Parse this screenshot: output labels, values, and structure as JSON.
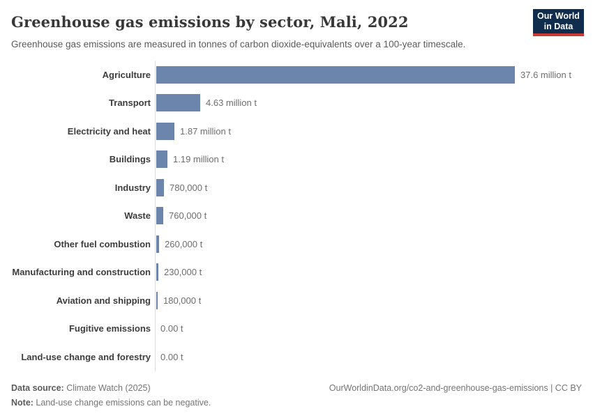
{
  "header": {
    "title": "Greenhouse gas emissions by sector, Mali, 2022",
    "subtitle": "Greenhouse gas emissions are measured in tonnes of carbon dioxide-equivalents over a 100-year timescale."
  },
  "logo": {
    "line1": "Our World",
    "line2": "in Data",
    "bg_color": "#102d4e",
    "accent_color": "#cc3b33"
  },
  "chart_data": {
    "type": "bar",
    "orientation": "horizontal",
    "title": "Greenhouse gas emissions by sector, Mali, 2022",
    "subtitle": "Greenhouse gas emissions are measured in tonnes of carbon dioxide-equivalents over a 100-year timescale.",
    "categories": [
      "Agriculture",
      "Transport",
      "Electricity and heat",
      "Buildings",
      "Industry",
      "Waste",
      "Other fuel combustion",
      "Manufacturing and construction",
      "Aviation and shipping",
      "Fugitive emissions",
      "Land-use change and forestry"
    ],
    "values_million_t": [
      37.6,
      4.63,
      1.87,
      1.19,
      0.78,
      0.76,
      0.26,
      0.23,
      0.18,
      0,
      0
    ],
    "value_labels": [
      "37.6 million t",
      "4.63 million t",
      "1.87 million t",
      "1.19 million t",
      "780,000 t",
      "760,000 t",
      "260,000 t",
      "230,000 t",
      "180,000 t",
      "0.00 t",
      "0.00 t"
    ],
    "xlim": [
      0,
      37.6
    ],
    "bar_color": "#6c85ad",
    "axis_line_color": "#dcdcdc",
    "grid": false,
    "legend": false
  },
  "footer": {
    "datasource_label": "Data source:",
    "datasource_value": " Climate Watch (2025)",
    "note_label": "Note:",
    "note_value": " Land-use change emissions can be negative.",
    "link_text": "OurWorldinData.org/co2-and-greenhouse-gas-emissions | CC BY"
  }
}
